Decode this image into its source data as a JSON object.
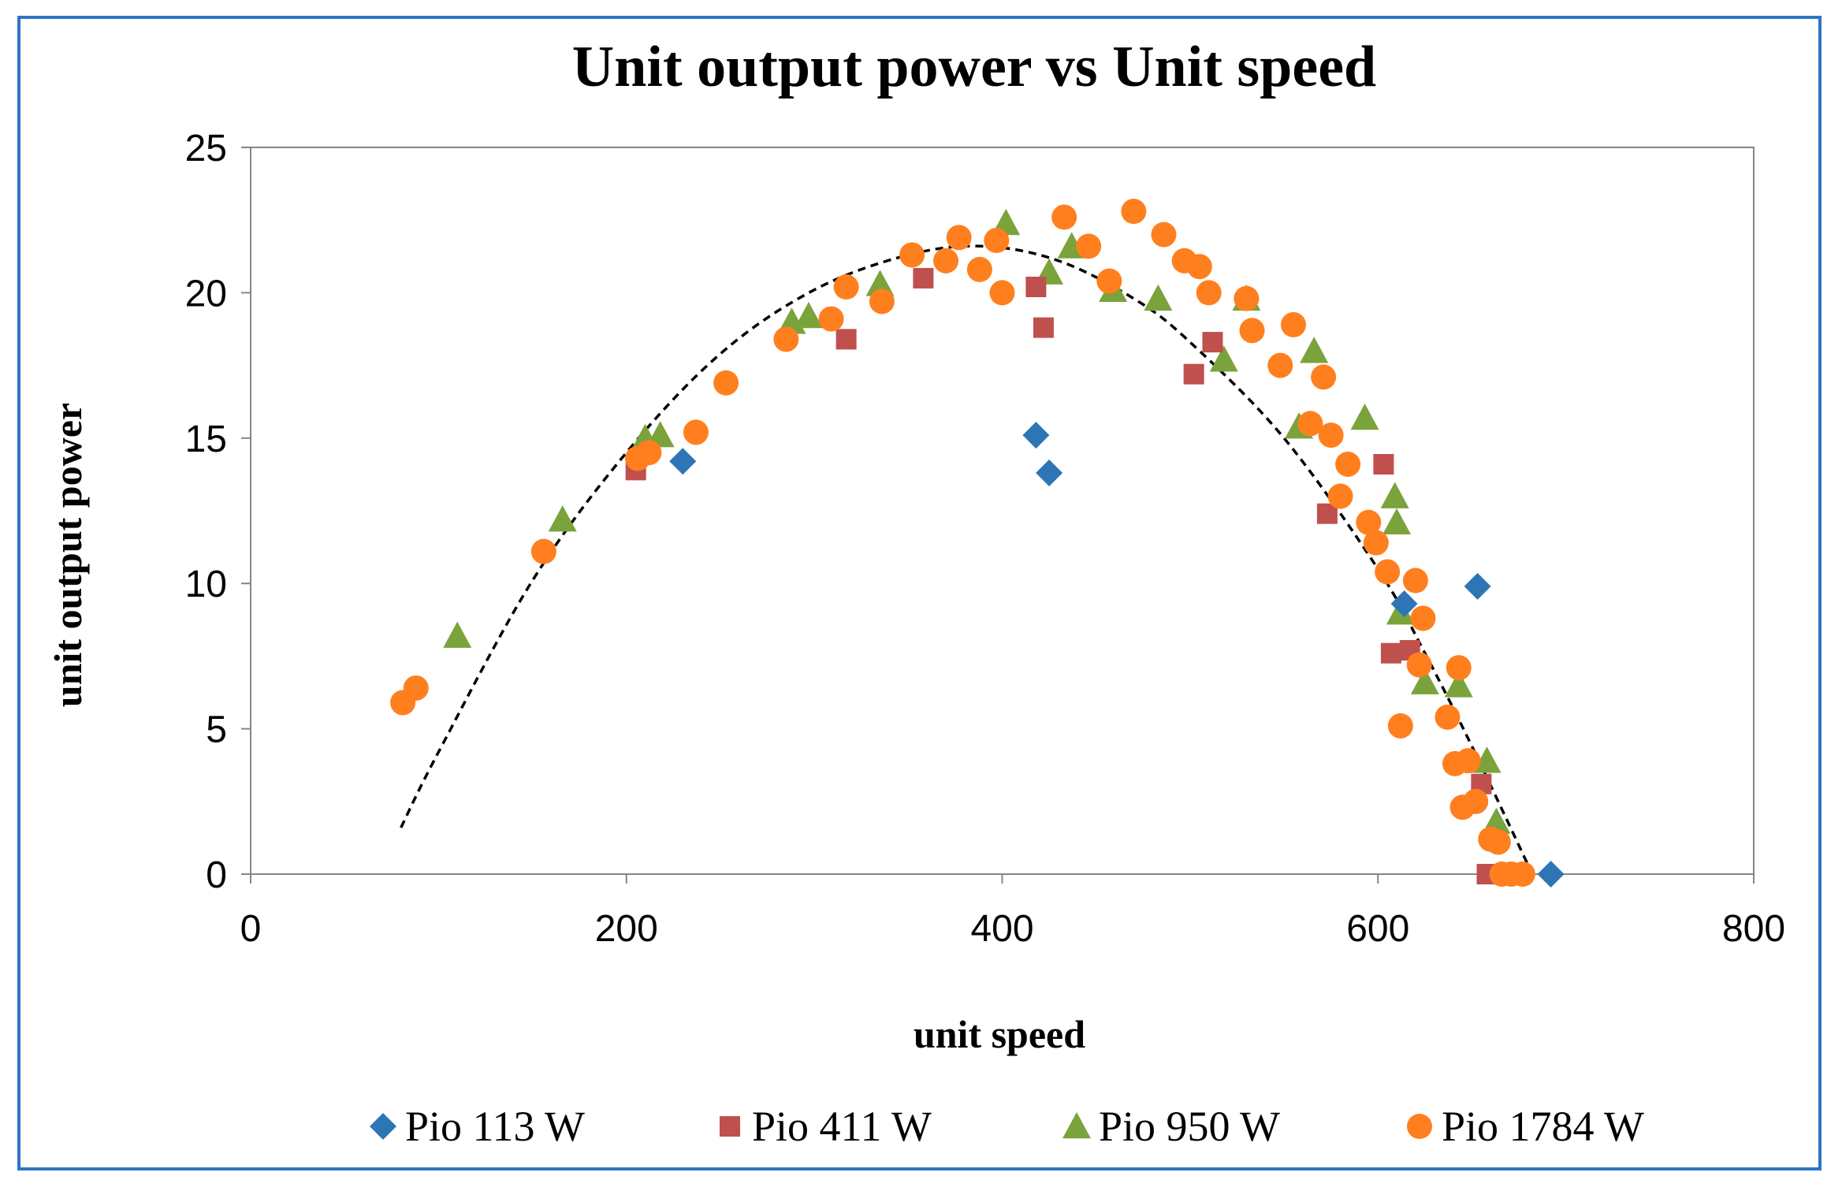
{
  "chart_data": {
    "type": "scatter",
    "title": "Unit output power vs Unit speed",
    "xlabel": "unit speed",
    "ylabel": "unit output power",
    "xlim": [
      0,
      800
    ],
    "ylim": [
      0,
      25
    ],
    "xticks": [
      "0",
      "200",
      "400",
      "600",
      "800"
    ],
    "yticks": [
      "0",
      "5",
      "10",
      "15",
      "20",
      "25"
    ],
    "grid": false,
    "legend_position": "bottom",
    "series": [
      {
        "name": "Pio 113 W",
        "marker": "diamond",
        "color": "#2e75b6",
        "points": [
          [
            230,
            14.2
          ],
          [
            418,
            15.1
          ],
          [
            425,
            13.8
          ],
          [
            614,
            9.3
          ],
          [
            653,
            9.9
          ],
          [
            692,
            0.0
          ]
        ]
      },
      {
        "name": "Pio 411 W",
        "marker": "square",
        "color": "#c0504d",
        "points": [
          [
            205,
            13.9
          ],
          [
            317,
            18.4
          ],
          [
            358,
            20.5
          ],
          [
            418,
            20.2
          ],
          [
            422,
            18.8
          ],
          [
            502,
            17.2
          ],
          [
            512,
            18.3
          ],
          [
            573,
            12.4
          ],
          [
            603,
            14.1
          ],
          [
            607,
            7.6
          ],
          [
            617,
            7.7
          ],
          [
            655,
            3.1
          ],
          [
            658,
            0.0
          ],
          [
            662,
            0.0
          ],
          [
            667,
            0.0
          ]
        ]
      },
      {
        "name": "Pio 950 W",
        "marker": "triangle",
        "color": "#7aa33c",
        "points": [
          [
            110,
            8.2
          ],
          [
            166,
            12.2
          ],
          [
            210,
            15.0
          ],
          [
            218,
            15.1
          ],
          [
            288,
            19.0
          ],
          [
            297,
            19.2
          ],
          [
            335,
            20.3
          ],
          [
            402,
            22.4
          ],
          [
            425,
            20.7
          ],
          [
            437,
            21.6
          ],
          [
            459,
            20.1
          ],
          [
            483,
            19.8
          ],
          [
            518,
            17.7
          ],
          [
            530,
            19.8
          ],
          [
            558,
            15.4
          ],
          [
            566,
            18.0
          ],
          [
            593,
            15.7
          ],
          [
            609,
            13.0
          ],
          [
            610,
            12.1
          ],
          [
            612,
            9.0
          ],
          [
            625,
            6.6
          ],
          [
            643,
            6.5
          ],
          [
            658,
            3.9
          ],
          [
            663,
            1.8
          ]
        ]
      },
      {
        "name": "Pio 1784 W",
        "marker": "circle",
        "color": "#ff7f1f",
        "points": [
          [
            81,
            5.9
          ],
          [
            88,
            6.4
          ],
          [
            156,
            11.1
          ],
          [
            206,
            14.3
          ],
          [
            212,
            14.5
          ],
          [
            237,
            15.2
          ],
          [
            253,
            16.9
          ],
          [
            285,
            18.4
          ],
          [
            309,
            19.1
          ],
          [
            317,
            20.2
          ],
          [
            336,
            19.7
          ],
          [
            352,
            21.3
          ],
          [
            377,
            21.9
          ],
          [
            370,
            21.1
          ],
          [
            388,
            20.8
          ],
          [
            397,
            21.8
          ],
          [
            400,
            20.0
          ],
          [
            433,
            22.6
          ],
          [
            446,
            21.6
          ],
          [
            457,
            20.4
          ],
          [
            470,
            22.8
          ],
          [
            486,
            22.0
          ],
          [
            497,
            21.1
          ],
          [
            505,
            20.9
          ],
          [
            510,
            20.0
          ],
          [
            530,
            19.8
          ],
          [
            533,
            18.7
          ],
          [
            548,
            17.5
          ],
          [
            555,
            18.9
          ],
          [
            564,
            15.5
          ],
          [
            571,
            17.1
          ],
          [
            575,
            15.1
          ],
          [
            580,
            13.0
          ],
          [
            584,
            14.1
          ],
          [
            595,
            12.1
          ],
          [
            599,
            11.4
          ],
          [
            605,
            10.4
          ],
          [
            612,
            5.1
          ],
          [
            620,
            10.1
          ],
          [
            624,
            8.8
          ],
          [
            622,
            7.2
          ],
          [
            637,
            5.4
          ],
          [
            641,
            3.8
          ],
          [
            643,
            7.1
          ],
          [
            645,
            2.3
          ],
          [
            648,
            3.9
          ],
          [
            652,
            2.5
          ],
          [
            660,
            1.2
          ],
          [
            664,
            1.1
          ],
          [
            666,
            0.0
          ],
          [
            671,
            0.0
          ],
          [
            677,
            0.0
          ]
        ]
      }
    ],
    "trendline": {
      "style": "dashed",
      "color": "#000000",
      "type": "polynomial",
      "points": [
        [
          80,
          1.6
        ],
        [
          100,
          4.2
        ],
        [
          150,
          10.1
        ],
        [
          200,
          14.5
        ],
        [
          250,
          17.9
        ],
        [
          300,
          20.1
        ],
        [
          350,
          21.3
        ],
        [
          390,
          21.6
        ],
        [
          430,
          21.1
        ],
        [
          470,
          19.8
        ],
        [
          500,
          18.3
        ],
        [
          550,
          15.0
        ],
        [
          600,
          10.5
        ],
        [
          625,
          7.6
        ],
        [
          650,
          4.4
        ],
        [
          680,
          0.3
        ]
      ]
    }
  }
}
